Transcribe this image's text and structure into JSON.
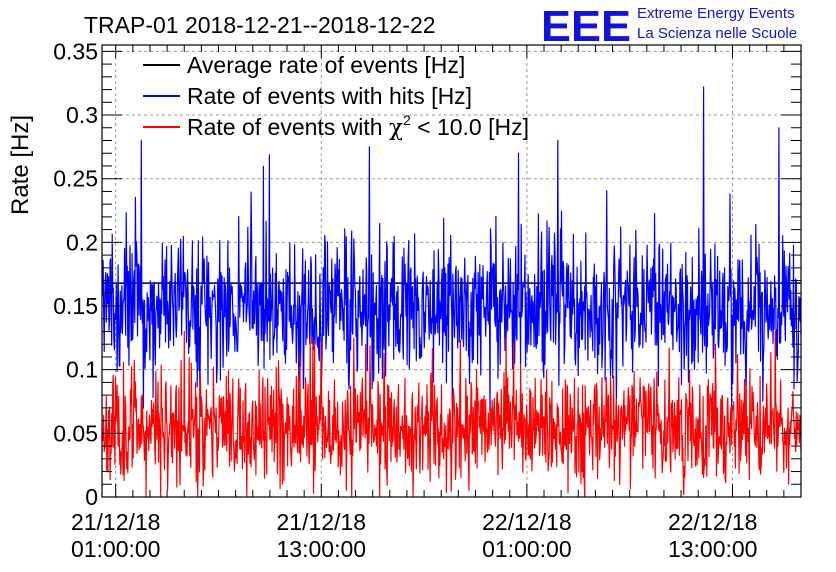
{
  "chart_data": {
    "type": "line",
    "title": "TRAP-01 2018-12-21--2018-12-22",
    "ylabel": "Rate [Hz]",
    "xlabel": "",
    "ylim": [
      0,
      0.355
    ],
    "yticks": [
      0,
      0.05,
      0.1,
      0.15,
      0.2,
      0.25,
      0.3,
      0.35
    ],
    "ytick_labels": [
      "0",
      "0.05",
      "0.1",
      "0.15",
      "0.2",
      "0.25",
      "0.3",
      "0.35"
    ],
    "xlim_hours": [
      -0.8,
      40.0
    ],
    "xticks_hours": [
      0,
      12,
      24,
      36
    ],
    "xtick_labels": [
      {
        "date": "21/12/18",
        "time": "01:00:00"
      },
      {
        "date": "21/12/18",
        "time": "13:00:00"
      },
      {
        "date": "22/12/18",
        "time": "01:00:00"
      },
      {
        "date": "22/12/18",
        "time": "13:00:00"
      }
    ],
    "grid": true,
    "legend_position": "top-left",
    "series": [
      {
        "name": "Average rate of events [Hz]",
        "legend_label": "Average rate of events [Hz]",
        "color": "#000000",
        "x_hours": [
          -0.8,
          40.0
        ],
        "values": [
          0.168,
          0.168
        ]
      },
      {
        "name": "Rate of events with hits [Hz]",
        "legend_label": "Rate of events with hits [Hz]",
        "color": "#0000ff",
        "sampled": true,
        "points": 1300,
        "seed": 7,
        "mean": 0.148,
        "sd": 0.028,
        "min": 0.055,
        "max": 0.322,
        "spikes": [
          [
            1.5,
            0.28
          ],
          [
            14.8,
            0.275
          ],
          [
            23.5,
            0.27
          ],
          [
            25.8,
            0.28
          ],
          [
            34.3,
            0.322
          ],
          [
            38.7,
            0.29
          ]
        ]
      },
      {
        "name": "Rate of events with chi2 < 10.0 [Hz]",
        "legend_prefix": "Rate of events with ",
        "legend_chi": "χ",
        "legend_sup": "2",
        "legend_suffix": " < 10.0 [Hz]",
        "color": "#ff0000",
        "sampled": true,
        "points": 1300,
        "seed": 11,
        "mean": 0.055,
        "sd": 0.022,
        "min": 0.0,
        "max": 0.125,
        "spikes": [
          [
            4.0,
            0.13
          ],
          [
            11.5,
            0.125
          ],
          [
            14.6,
            0.12
          ],
          [
            35.0,
            0.12
          ],
          [
            38.5,
            0.13
          ]
        ]
      }
    ]
  },
  "logo": {
    "letters": "EEE",
    "line1": "Extreme Energy Events",
    "line2": "La Scienza nelle Scuole",
    "color": "#1212d8"
  }
}
